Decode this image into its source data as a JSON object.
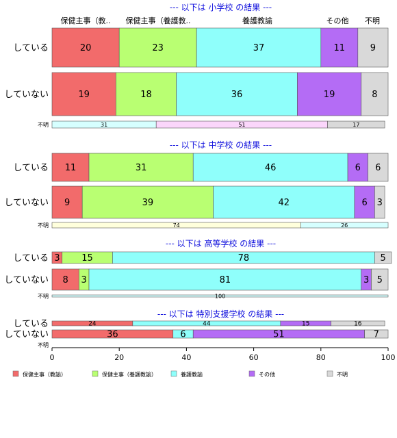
{
  "chart_data": {
    "type": "bar",
    "orientation": "horizontal",
    "stacked": true,
    "percent": true,
    "xlim": [
      0,
      100
    ],
    "x_ticks": [
      "0",
      "20",
      "40",
      "60",
      "80",
      "100"
    ],
    "legend_position": "bottom",
    "top_header": [
      "保健主事（教..",
      "保健主事（養護教..",
      "養護教諭",
      "その他",
      "不明"
    ],
    "legend": [
      {
        "label": "保健主事（教諭）",
        "color": "#f26b6b"
      },
      {
        "label": "保健主事（養護教諭）",
        "color": "#b9ff72"
      },
      {
        "label": "養護教諭",
        "color": "#8ffffb"
      },
      {
        "label": "その他",
        "color": "#b46cf5"
      },
      {
        "label": "不明",
        "color": "#d9d9d9"
      }
    ],
    "sections": [
      {
        "title": "--- 以下は 小学校 の結果 ---",
        "rows": [
          {
            "label": "している",
            "values": [
              20,
              23,
              37,
              11,
              9
            ],
            "colors": [
              "#f26b6b",
              "#b9ff72",
              "#8ffffb",
              "#b46cf5",
              "#d9d9d9"
            ]
          },
          {
            "label": "していない",
            "values": [
              19,
              18,
              36,
              19,
              8
            ],
            "colors": [
              "#f26b6b",
              "#b9ff72",
              "#8ffffb",
              "#b46cf5",
              "#d9d9d9"
            ]
          },
          {
            "label": "不明",
            "values": [
              31,
              51,
              17
            ],
            "colors": [
              "#d6ffff",
              "#fbd6fb",
              "#d9d9d9"
            ]
          }
        ]
      },
      {
        "title": "--- 以下は 中学校 の結果 ---",
        "rows": [
          {
            "label": "している",
            "values": [
              11,
              31,
              46,
              6,
              6
            ],
            "colors": [
              "#f26b6b",
              "#b9ff72",
              "#8ffffb",
              "#b46cf5",
              "#d9d9d9"
            ]
          },
          {
            "label": "していない",
            "values": [
              9,
              39,
              42,
              6,
              3
            ],
            "colors": [
              "#f26b6b",
              "#b9ff72",
              "#8ffffb",
              "#b46cf5",
              "#d9d9d9"
            ]
          },
          {
            "label": "不明",
            "values": [
              74,
              26
            ],
            "colors": [
              "#ffffdc",
              "#d6ffff"
            ]
          }
        ]
      },
      {
        "title": "--- 以下は 高等学校 の結果 ---",
        "rows": [
          {
            "label": "している",
            "values": [
              3,
              15,
              78,
              0,
              5
            ],
            "colors": [
              "#f26b6b",
              "#b9ff72",
              "#8ffffb",
              "#b46cf5",
              "#d9d9d9"
            ]
          },
          {
            "label": "していない",
            "values": [
              8,
              3,
              81,
              3,
              5
            ],
            "colors": [
              "#f26b6b",
              "#b9ff72",
              "#8ffffb",
              "#b46cf5",
              "#d9d9d9"
            ]
          },
          {
            "label": "不明",
            "values": [
              100
            ],
            "colors": [
              "#d6ffff"
            ]
          }
        ]
      },
      {
        "title": "--- 以下は 特別支援学校 の結果 ---",
        "rows": [
          {
            "label": "している",
            "values": [
              24,
              0,
              44,
              15,
              16
            ],
            "colors": [
              "#f26b6b",
              "#b9ff72",
              "#8ffffb",
              "#b46cf5",
              "#d9d9d9"
            ]
          },
          {
            "label": "していない",
            "values": [
              36,
              0,
              6,
              51,
              7
            ],
            "colors": [
              "#f26b6b",
              "#b9ff72",
              "#8ffffb",
              "#b46cf5",
              "#d9d9d9"
            ]
          },
          {
            "label": "不明",
            "values": [],
            "colors": []
          }
        ]
      }
    ]
  }
}
